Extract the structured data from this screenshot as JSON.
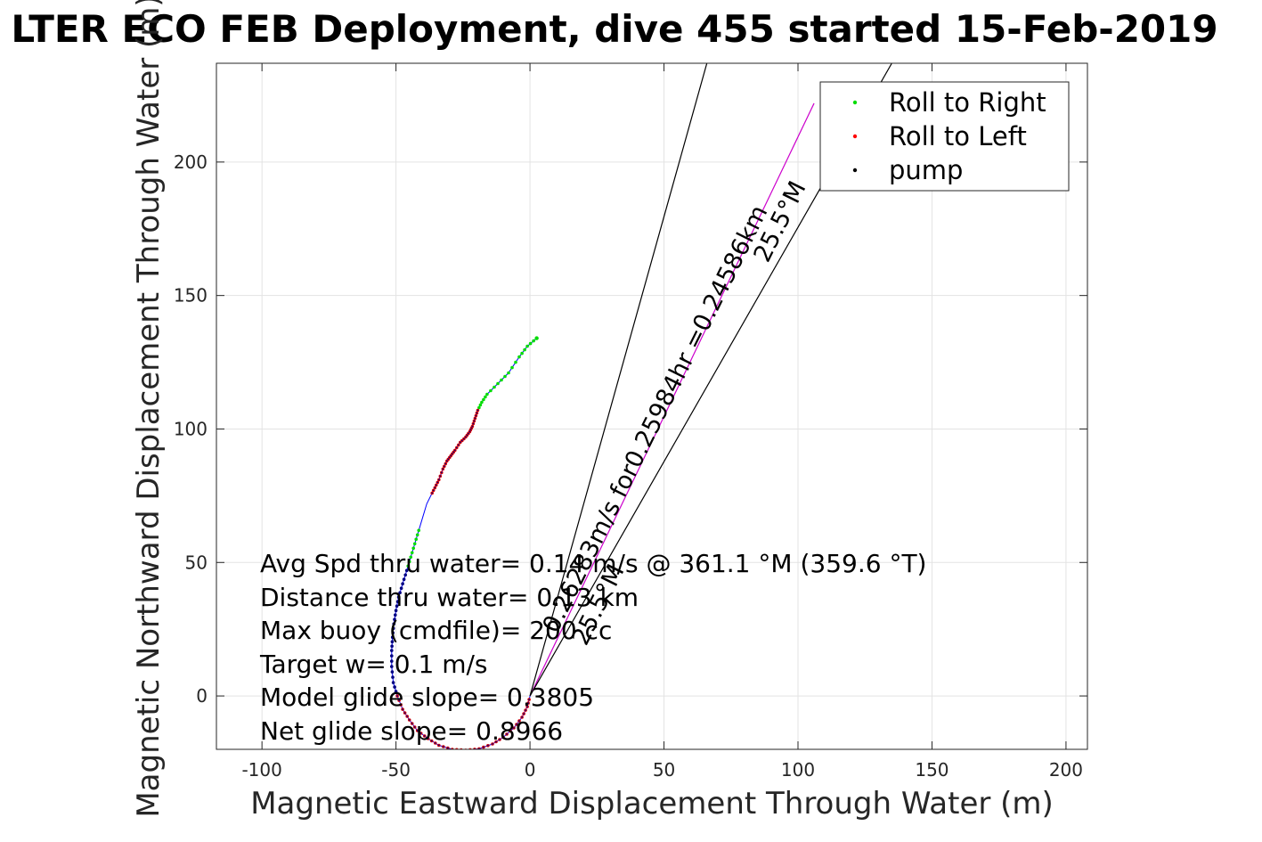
{
  "chart_data": {
    "type": "scatter",
    "title": "LTER ECO FEB Deployment, dive 455 started 15-Feb-2019",
    "xlabel": "Magnetic Eastward Displacement Through Water (m)",
    "ylabel": "Magnetic Northward Displacement Through Water (m)",
    "xlim": [
      -117,
      208
    ],
    "ylim": [
      -20,
      237
    ],
    "grid": true,
    "xticks": [
      -100,
      -50,
      0,
      50,
      100,
      150,
      200
    ],
    "yticks": [
      0,
      50,
      100,
      150,
      200
    ],
    "xtick_labels": [
      "-100",
      "-50",
      "0",
      "50",
      "100",
      "150",
      "200"
    ],
    "ytick_labels": [
      "0",
      "50",
      "100",
      "150",
      "200"
    ],
    "legend_position": "top-right",
    "legend": [
      {
        "label": "Roll to Right",
        "color": "#00cc00"
      },
      {
        "label": "Roll to Left",
        "color": "#ff0000"
      },
      {
        "label": "pump",
        "color": "#000000"
      }
    ],
    "colors": {
      "track": "#0000ff",
      "roll_right": "#00dd00",
      "roll_left": "#e00000",
      "pump": "#000080",
      "heading_line": "#cc00cc",
      "lines": "#000000"
    },
    "series": [
      {
        "name": "track",
        "points": [
          [
            2.5,
            134
          ],
          [
            -1,
            131
          ],
          [
            -4,
            127
          ],
          [
            -8,
            121
          ],
          [
            -12,
            117
          ],
          [
            -16,
            113
          ],
          [
            -18,
            110
          ],
          [
            -19.5,
            107
          ],
          [
            -20.5,
            104
          ],
          [
            -21.5,
            101
          ],
          [
            -22.5,
            99
          ],
          [
            -24,
            97
          ],
          [
            -26,
            95
          ],
          [
            -28,
            92
          ],
          [
            -29.5,
            90
          ],
          [
            -31,
            88
          ],
          [
            -32.5,
            85
          ],
          [
            -34,
            81
          ],
          [
            -35.5,
            78
          ],
          [
            -37,
            75
          ],
          [
            -38.5,
            72
          ],
          [
            -40,
            67
          ],
          [
            -41.5,
            62
          ],
          [
            -43,
            57
          ],
          [
            -44.5,
            52
          ],
          [
            -46,
            47
          ],
          [
            -47.5,
            42
          ],
          [
            -49,
            37
          ],
          [
            -50,
            32
          ],
          [
            -50.8,
            27
          ],
          [
            -51.3,
            22
          ],
          [
            -51.6,
            17
          ],
          [
            -51.6,
            11
          ],
          [
            -51,
            5
          ],
          [
            -49.5,
            0
          ],
          [
            -47.5,
            -5
          ],
          [
            -45,
            -9
          ],
          [
            -42,
            -13
          ],
          [
            -38,
            -16
          ],
          [
            -34,
            -18.5
          ],
          [
            -29,
            -20
          ],
          [
            -24,
            -20.3
          ],
          [
            -19,
            -19.8
          ],
          [
            -14,
            -18
          ],
          [
            -10,
            -15.5
          ],
          [
            -6,
            -12
          ],
          [
            -3,
            -8
          ],
          [
            -1,
            -4
          ],
          [
            0,
            0
          ]
        ]
      }
    ],
    "roll_right_ranges": [
      [
        0,
        6
      ],
      [
        22,
        25
      ]
    ],
    "roll_left_ranges": [
      [
        6,
        18
      ],
      [
        34,
        49
      ]
    ],
    "pump_range": [
      25,
      34
    ],
    "lines": [
      {
        "from": [
          0,
          0
        ],
        "to": [
          106,
          222
        ],
        "color": "#cc00cc"
      },
      {
        "from": [
          0,
          0
        ],
        "to": [
          66,
          237
        ],
        "color": "#000000"
      },
      {
        "from": [
          0,
          0
        ],
        "to": [
          135,
          237
        ],
        "color": "#000000"
      }
    ],
    "annotations": {
      "line_label": "0.26283m/s for0.25984hr =0.24586km",
      "line_heading": "25.5°M",
      "center_heading": "25.5°M",
      "stats": [
        "Avg Spd thru water= 0.14 m/s @ 361.1 °M (359.6 °T)",
        "Distance thru water= 0.13 km",
        "Max buoy (cmdfile)= 200 cc",
        "Target w= 0.1 m/s",
        "Model glide slope= 0.3805",
        "Net glide slope= 0.8966"
      ]
    }
  }
}
